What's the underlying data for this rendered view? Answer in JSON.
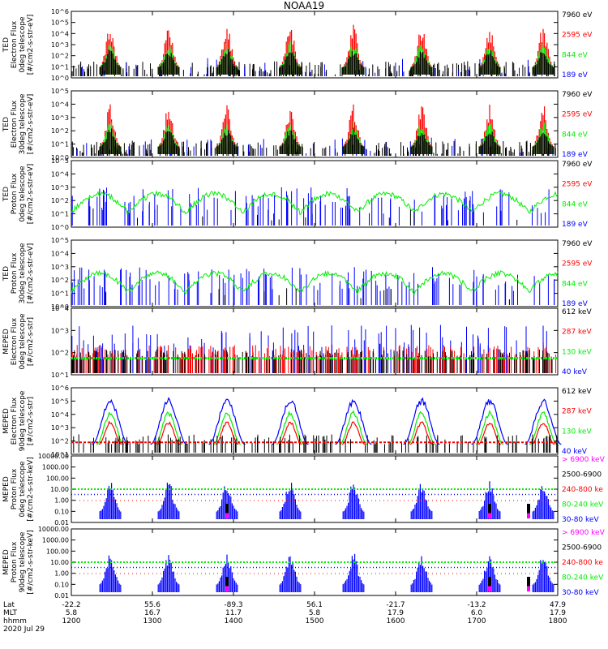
{
  "title": "NOAA19",
  "colors": {
    "black": "#000000",
    "red": "#ff0000",
    "green": "#00ee00",
    "blue": "#0000ff",
    "magenta": "#ff00ff"
  },
  "footer": {
    "row_labels": [
      "Lat",
      "MLT",
      "hhmm",
      "2020 Jul 29"
    ],
    "ticks": [
      {
        "lat": "-22.2",
        "mlt": "5.8",
        "hhmm": "1200"
      },
      {
        "lat": "55.6",
        "mlt": "16.7",
        "hhmm": "1300"
      },
      {
        "lat": "-89.3",
        "mlt": "11.7",
        "hhmm": "1400"
      },
      {
        "lat": "56.1",
        "mlt": "5.8",
        "hhmm": "1500"
      },
      {
        "lat": "-21.7",
        "mlt": "17.9",
        "hhmm": "1600"
      },
      {
        "lat": "-13.2",
        "mlt": "6.0",
        "hhmm": "1700"
      },
      {
        "lat": "47.9",
        "mlt": "17.9",
        "hhmm": "1800"
      }
    ]
  },
  "chart_data": [
    {
      "type": "scatter",
      "ylabel": [
        "TED",
        "Electron Flux",
        "0deg telescope",
        "[#/cm2-s-str-eV]"
      ],
      "yscale": "log",
      "yticks": [
        "10^0",
        "10^1",
        "10^2",
        "10^3",
        "10^4",
        "10^5",
        "10^6"
      ],
      "legend": [
        {
          "label": "7960 eV",
          "color": "black"
        },
        {
          "label": "2595 eV",
          "color": "red"
        },
        {
          "label": "844 eV",
          "color": "green"
        },
        {
          "label": "189 eV",
          "color": "blue"
        }
      ]
    },
    {
      "type": "scatter",
      "ylabel": [
        "TED",
        "Electron Flux",
        "30deg telescope",
        "[#/cm2-s-str-eV]"
      ],
      "yscale": "log",
      "yticks": [
        "10^0",
        "10^1",
        "10^2",
        "10^3",
        "10^4",
        "10^5"
      ],
      "legend": [
        {
          "label": "7960 eV",
          "color": "black"
        },
        {
          "label": "2595 eV",
          "color": "red"
        },
        {
          "label": "844 eV",
          "color": "green"
        },
        {
          "label": "189 eV",
          "color": "blue"
        }
      ]
    },
    {
      "type": "scatter",
      "ylabel": [
        "TED",
        "Proton Flux",
        "0deg telescope",
        "[#/cm2-s-str-eV]"
      ],
      "yscale": "log",
      "yticks": [
        "10^0",
        "10^1",
        "10^2",
        "10^3",
        "10^4",
        "10^5"
      ],
      "legend": [
        {
          "label": "7960 eV",
          "color": "black"
        },
        {
          "label": "2595 eV",
          "color": "red"
        },
        {
          "label": "844 eV",
          "color": "green"
        },
        {
          "label": "189 eV",
          "color": "blue"
        }
      ]
    },
    {
      "type": "scatter",
      "ylabel": [
        "TED",
        "Proton Flux",
        "30deg telescope",
        "[#/cm2-s-str-eV]"
      ],
      "yscale": "log",
      "yticks": [
        "10^0",
        "10^1",
        "10^2",
        "10^3",
        "10^4",
        "10^5"
      ],
      "legend": [
        {
          "label": "7960 eV",
          "color": "black"
        },
        {
          "label": "2595 eV",
          "color": "red"
        },
        {
          "label": "844 eV",
          "color": "green"
        },
        {
          "label": "189 eV",
          "color": "blue"
        }
      ]
    },
    {
      "type": "scatter",
      "ylabel": [
        "MEPED",
        "Electron Flux",
        "0deg telescope",
        "[#/cm2-s-str]"
      ],
      "yscale": "log",
      "yticks": [
        "10^1",
        "10^2",
        "10^3",
        "10^4"
      ],
      "legend": [
        {
          "label": "612 keV",
          "color": "black"
        },
        {
          "label": "287 keV",
          "color": "red"
        },
        {
          "label": "130 keV",
          "color": "green"
        },
        {
          "label": "40 keV",
          "color": "blue"
        }
      ]
    },
    {
      "type": "scatter",
      "ylabel": [
        "MEPED",
        "Electron Flux",
        "90deg telescope",
        "[#/cm2-s-str]"
      ],
      "yscale": "log",
      "yticks": [
        "10^1",
        "10^2",
        "10^3",
        "10^4",
        "10^5",
        "10^6"
      ],
      "legend": [
        {
          "label": "612 keV",
          "color": "black"
        },
        {
          "label": "287 keV",
          "color": "red"
        },
        {
          "label": "130 keV",
          "color": "green"
        },
        {
          "label": "40 keV",
          "color": "blue"
        }
      ]
    },
    {
      "type": "scatter",
      "ylabel": [
        "MEPED",
        "Proton Flux",
        "0deg telescope",
        "[#/cm2-s-str-keV]"
      ],
      "yscale": "log",
      "yticks": [
        "0.01",
        "0.10",
        "1.00",
        "10.00",
        "100.00",
        "1000.00",
        "10000.00"
      ],
      "legend": [
        {
          "label": "> 6900 keV",
          "color": "magenta"
        },
        {
          "label": "2500-6900",
          "color": "black"
        },
        {
          "label": "240-800 ke",
          "color": "red"
        },
        {
          "label": "80-240 keV",
          "color": "green"
        },
        {
          "label": "30-80 keV",
          "color": "blue"
        }
      ]
    },
    {
      "type": "scatter",
      "ylabel": [
        "MEPED",
        "Proton Flux",
        "90deg telescope",
        "[#/cm2-s-str-keV]"
      ],
      "yscale": "log",
      "yticks": [
        "0.01",
        "0.10",
        "1.00",
        "10.00",
        "100.00",
        "1000.00",
        "10000.00"
      ],
      "legend": [
        {
          "label": "> 6900 keV",
          "color": "magenta"
        },
        {
          "label": "2500-6900",
          "color": "black"
        },
        {
          "label": "240-800 ke",
          "color": "red"
        },
        {
          "label": "80-240 keV",
          "color": "green"
        },
        {
          "label": "30-80 keV",
          "color": "blue"
        }
      ]
    }
  ]
}
